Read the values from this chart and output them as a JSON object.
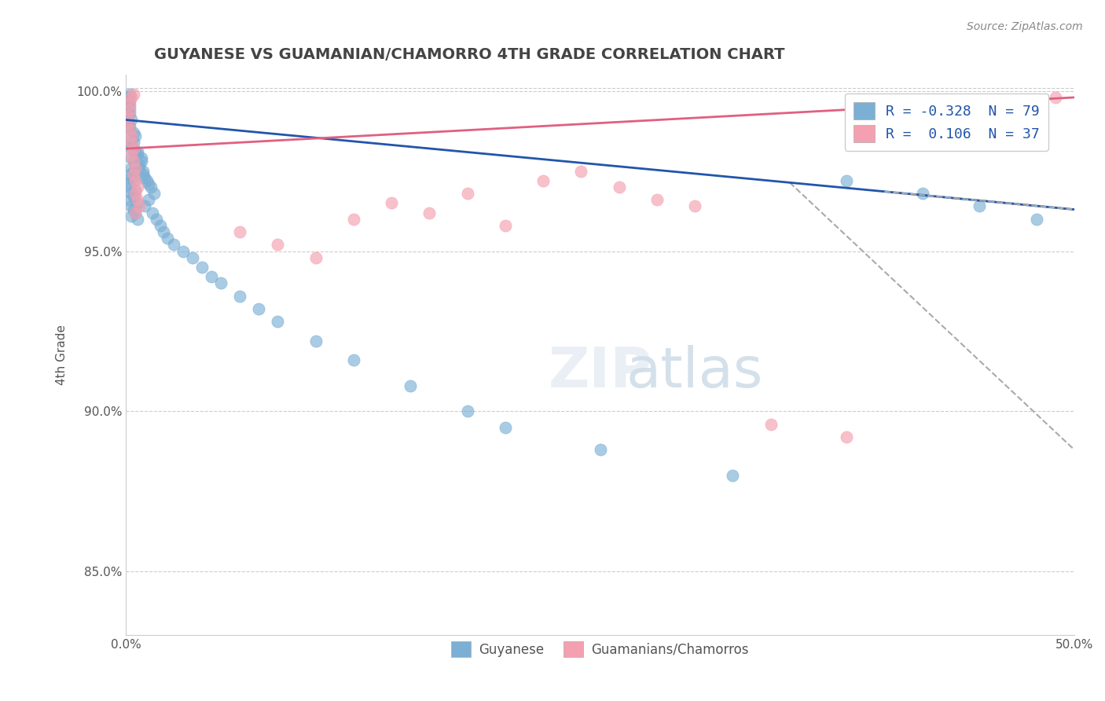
{
  "title": "GUYANESE VS GUAMANIAN/CHAMORRO 4TH GRADE CORRELATION CHART",
  "source_text": "Source: ZipAtlas.com",
  "xlabel": "",
  "ylabel": "4th Grade",
  "xlim": [
    0.0,
    0.5
  ],
  "ylim": [
    0.83,
    1.005
  ],
  "xticks": [
    0.0,
    0.1,
    0.2,
    0.3,
    0.4,
    0.5
  ],
  "xticklabels": [
    "0.0%",
    "",
    "",
    "",
    "",
    "50.0%"
  ],
  "yticks": [
    0.85,
    0.9,
    0.95,
    1.0
  ],
  "yticklabels": [
    "85.0%",
    "90.0%",
    "95.0%",
    "100.0%"
  ],
  "blue_R": -0.328,
  "blue_N": 79,
  "pink_R": 0.106,
  "pink_N": 37,
  "blue_color": "#7bafd4",
  "pink_color": "#f4a0b0",
  "blue_line_color": "#2255aa",
  "pink_line_color": "#e06080",
  "legend_blue_label": "Guyanese",
  "legend_pink_label": "Guamanians/Chamorros",
  "watermark": "ZIPatlas",
  "blue_scatter_x": [
    0.001,
    0.002,
    0.003,
    0.001,
    0.004,
    0.002,
    0.003,
    0.005,
    0.001,
    0.002,
    0.003,
    0.004,
    0.002,
    0.001,
    0.003,
    0.005,
    0.006,
    0.002,
    0.003,
    0.004,
    0.005,
    0.001,
    0.002,
    0.003,
    0.004,
    0.002,
    0.003,
    0.004,
    0.001,
    0.002,
    0.005,
    0.003,
    0.004,
    0.002,
    0.006,
    0.003,
    0.004,
    0.005,
    0.003,
    0.006,
    0.008,
    0.007,
    0.009,
    0.01,
    0.012,
    0.008,
    0.006,
    0.007,
    0.009,
    0.011,
    0.013,
    0.015,
    0.012,
    0.01,
    0.014,
    0.016,
    0.018,
    0.02,
    0.022,
    0.025,
    0.03,
    0.035,
    0.04,
    0.045,
    0.05,
    0.06,
    0.07,
    0.08,
    0.1,
    0.12,
    0.15,
    0.18,
    0.2,
    0.25,
    0.32,
    0.38,
    0.42,
    0.45,
    0.48
  ],
  "blue_scatter_y": [
    0.99,
    0.988,
    0.985,
    0.992,
    0.987,
    0.993,
    0.991,
    0.986,
    0.994,
    0.989,
    0.983,
    0.984,
    0.995,
    0.996,
    0.982,
    0.981,
    0.98,
    0.997,
    0.979,
    0.978,
    0.977,
    0.998,
    0.999,
    0.976,
    0.975,
    0.974,
    0.973,
    0.972,
    0.971,
    0.97,
    0.969,
    0.968,
    0.967,
    0.966,
    0.965,
    0.964,
    0.963,
    0.962,
    0.961,
    0.96,
    0.978,
    0.976,
    0.975,
    0.973,
    0.971,
    0.979,
    0.981,
    0.977,
    0.974,
    0.972,
    0.97,
    0.968,
    0.966,
    0.964,
    0.962,
    0.96,
    0.958,
    0.956,
    0.954,
    0.952,
    0.95,
    0.948,
    0.945,
    0.942,
    0.94,
    0.936,
    0.932,
    0.928,
    0.922,
    0.916,
    0.908,
    0.9,
    0.895,
    0.888,
    0.88,
    0.972,
    0.968,
    0.964,
    0.96
  ],
  "pink_scatter_x": [
    0.001,
    0.002,
    0.003,
    0.001,
    0.002,
    0.003,
    0.004,
    0.002,
    0.003,
    0.004,
    0.005,
    0.003,
    0.004,
    0.005,
    0.006,
    0.004,
    0.005,
    0.006,
    0.007,
    0.005,
    0.06,
    0.08,
    0.1,
    0.12,
    0.14,
    0.16,
    0.18,
    0.2,
    0.22,
    0.24,
    0.26,
    0.28,
    0.3,
    0.34,
    0.38,
    0.44,
    0.49
  ],
  "pink_scatter_y": [
    0.99,
    0.988,
    0.986,
    0.992,
    0.994,
    0.984,
    0.982,
    0.996,
    0.98,
    0.978,
    0.976,
    0.998,
    0.974,
    0.972,
    0.97,
    0.999,
    0.968,
    0.966,
    0.964,
    0.962,
    0.956,
    0.952,
    0.948,
    0.96,
    0.965,
    0.962,
    0.968,
    0.958,
    0.972,
    0.975,
    0.97,
    0.966,
    0.964,
    0.896,
    0.892,
    0.988,
    0.998
  ]
}
